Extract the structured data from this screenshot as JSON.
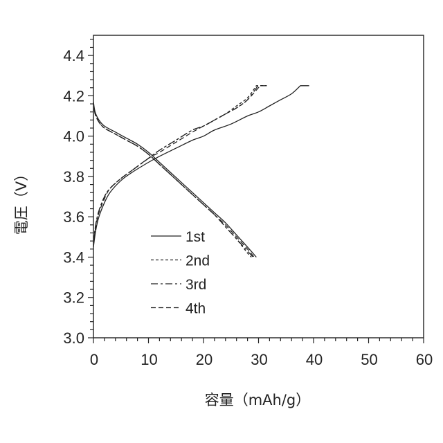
{
  "chart_data": {
    "type": "line",
    "title": "",
    "xlabel": "容量（mAh/g）",
    "ylabel": "電圧（V）",
    "xlim": [
      0,
      60
    ],
    "ylim": [
      3.0,
      4.5
    ],
    "x_ticks": [
      "0",
      "10",
      "20",
      "30",
      "40",
      "50",
      "60"
    ],
    "y_ticks": [
      "3.0",
      "3.2",
      "3.4",
      "3.6",
      "3.8",
      "4.0",
      "4.2",
      "4.4"
    ],
    "grid": false,
    "legend": "inside-lower-left",
    "series": [
      {
        "name": "1st",
        "line_style": "solid",
        "charge": [
          [
            0,
            3.45
          ],
          [
            0.4,
            3.53
          ],
          [
            1,
            3.6
          ],
          [
            2,
            3.67
          ],
          [
            3,
            3.72
          ],
          [
            5,
            3.78
          ],
          [
            7,
            3.82
          ],
          [
            10,
            3.87
          ],
          [
            12,
            3.9
          ],
          [
            15,
            3.94
          ],
          [
            18,
            3.98
          ],
          [
            20,
            4.0
          ],
          [
            22,
            4.03
          ],
          [
            25,
            4.06
          ],
          [
            28,
            4.1
          ],
          [
            30,
            4.12
          ],
          [
            32,
            4.15
          ],
          [
            34,
            4.18
          ],
          [
            36,
            4.21
          ],
          [
            37.6,
            4.25
          ],
          [
            39.2,
            4.25
          ]
        ],
        "discharge": [
          [
            0,
            4.17
          ],
          [
            0.3,
            4.12
          ],
          [
            1,
            4.08
          ],
          [
            2,
            4.05
          ],
          [
            4,
            4.02
          ],
          [
            6,
            3.99
          ],
          [
            8,
            3.96
          ],
          [
            10,
            3.92
          ],
          [
            12,
            3.87
          ],
          [
            14,
            3.82
          ],
          [
            16,
            3.77
          ],
          [
            18,
            3.72
          ],
          [
            20,
            3.67
          ],
          [
            22,
            3.62
          ],
          [
            24,
            3.57
          ],
          [
            26,
            3.51
          ],
          [
            28,
            3.45
          ],
          [
            29.6,
            3.4
          ]
        ]
      },
      {
        "name": "2nd",
        "line_style": "dashed",
        "charge": [
          [
            0,
            3.47
          ],
          [
            0.4,
            3.56
          ],
          [
            1,
            3.63
          ],
          [
            2,
            3.7
          ],
          [
            3,
            3.74
          ],
          [
            5,
            3.79
          ],
          [
            7,
            3.83
          ],
          [
            10,
            3.89
          ],
          [
            12,
            3.93
          ],
          [
            15,
            3.98
          ],
          [
            18,
            4.03
          ],
          [
            20,
            4.05
          ],
          [
            22,
            4.08
          ],
          [
            24,
            4.11
          ],
          [
            26,
            4.15
          ],
          [
            28,
            4.19
          ],
          [
            29.6,
            4.25
          ],
          [
            31.5,
            4.25
          ]
        ],
        "discharge": [
          [
            0,
            4.16
          ],
          [
            0.3,
            4.11
          ],
          [
            1,
            4.07
          ],
          [
            2,
            4.04
          ],
          [
            4,
            4.01
          ],
          [
            6,
            3.98
          ],
          [
            8,
            3.95
          ],
          [
            10,
            3.91
          ],
          [
            12,
            3.86
          ],
          [
            14,
            3.81
          ],
          [
            16,
            3.76
          ],
          [
            18,
            3.71
          ],
          [
            20,
            3.66
          ],
          [
            22,
            3.61
          ],
          [
            24,
            3.55
          ],
          [
            26,
            3.49
          ],
          [
            28,
            3.42
          ],
          [
            28.7,
            3.4
          ]
        ]
      },
      {
        "name": "3rd",
        "line_style": "dash-dot",
        "charge": [
          [
            0,
            3.47
          ],
          [
            0.4,
            3.56
          ],
          [
            1,
            3.63
          ],
          [
            2,
            3.7
          ],
          [
            3,
            3.74
          ],
          [
            5,
            3.79
          ],
          [
            7,
            3.83
          ],
          [
            10,
            3.89
          ],
          [
            12,
            3.93
          ],
          [
            15,
            3.98
          ],
          [
            18,
            4.03
          ],
          [
            20,
            4.05
          ],
          [
            22,
            4.08
          ],
          [
            24,
            4.11
          ],
          [
            26,
            4.14
          ],
          [
            28,
            4.18
          ],
          [
            29.9,
            4.25
          ],
          [
            31.5,
            4.25
          ]
        ],
        "discharge": [
          [
            0,
            4.16
          ],
          [
            0.3,
            4.11
          ],
          [
            1,
            4.07
          ],
          [
            2,
            4.04
          ],
          [
            4,
            4.01
          ],
          [
            6,
            3.98
          ],
          [
            8,
            3.95
          ],
          [
            10,
            3.91
          ],
          [
            12,
            3.86
          ],
          [
            14,
            3.81
          ],
          [
            16,
            3.76
          ],
          [
            18,
            3.71
          ],
          [
            20,
            3.66
          ],
          [
            22,
            3.61
          ],
          [
            24,
            3.55
          ],
          [
            26,
            3.49
          ],
          [
            28,
            3.43
          ],
          [
            29.0,
            3.4
          ]
        ]
      },
      {
        "name": "4th",
        "line_style": "long-dashed",
        "charge": [
          [
            0,
            3.46
          ],
          [
            0.4,
            3.55
          ],
          [
            1,
            3.62
          ],
          [
            2,
            3.69
          ],
          [
            3,
            3.74
          ],
          [
            5,
            3.79
          ],
          [
            7,
            3.83
          ],
          [
            10,
            3.89
          ],
          [
            12,
            3.92
          ],
          [
            15,
            3.97
          ],
          [
            18,
            4.02
          ],
          [
            20,
            4.05
          ],
          [
            22,
            4.08
          ],
          [
            24,
            4.11
          ],
          [
            26,
            4.14
          ],
          [
            28,
            4.18
          ],
          [
            30.3,
            4.25
          ],
          [
            31.5,
            4.25
          ]
        ],
        "discharge": [
          [
            0,
            4.16
          ],
          [
            0.3,
            4.11
          ],
          [
            1,
            4.07
          ],
          [
            2,
            4.04
          ],
          [
            4,
            4.01
          ],
          [
            6,
            3.98
          ],
          [
            8,
            3.95
          ],
          [
            10,
            3.91
          ],
          [
            12,
            3.86
          ],
          [
            14,
            3.81
          ],
          [
            16,
            3.76
          ],
          [
            18,
            3.71
          ],
          [
            20,
            3.66
          ],
          [
            22,
            3.61
          ],
          [
            24,
            3.56
          ],
          [
            26,
            3.5
          ],
          [
            28,
            3.44
          ],
          [
            29.2,
            3.4
          ]
        ]
      }
    ]
  }
}
